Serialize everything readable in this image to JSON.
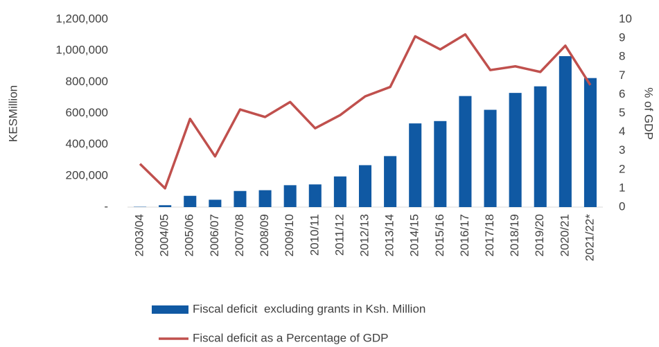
{
  "chart_data": {
    "type": "bar",
    "categories": [
      "2003/04",
      "2004/05",
      "2005/06",
      "2006/07",
      "2007/08",
      "2008/09",
      "2009/10",
      "2010/11",
      "2011/12",
      "2012/13",
      "2013/14",
      "2014/15",
      "2015/16",
      "2016/17",
      "2017/18",
      "2018/19",
      "2019/20",
      "2020/21",
      "2021/22*"
    ],
    "series": [
      {
        "name": "Fiscal deficit  excluding grants in Ksh. Million",
        "type": "bar",
        "color": "#1059a3",
        "values": [
          2000,
          12000,
          72000,
          47000,
          103000,
          108000,
          140000,
          145000,
          196000,
          268000,
          326000,
          535000,
          550000,
          710000,
          622000,
          730000,
          772000,
          965000,
          825000
        ]
      },
      {
        "name": "Fiscal deficit as a Percentage of GDP",
        "type": "line",
        "axis": "y2",
        "color": "#c0504d",
        "values": [
          2.3,
          1.0,
          4.7,
          2.7,
          5.2,
          4.8,
          5.6,
          4.2,
          4.9,
          5.9,
          6.4,
          9.1,
          8.4,
          9.2,
          7.3,
          7.5,
          7.2,
          8.6,
          6.5
        ]
      }
    ],
    "y_label": "KESMillion",
    "y2_label": "% of GDP",
    "ylim": [
      0,
      1200000
    ],
    "yticks": [
      {
        "value": 0,
        "label": "-"
      },
      {
        "value": 200000,
        "label": "200,000"
      },
      {
        "value": 400000,
        "label": "400,000"
      },
      {
        "value": 600000,
        "label": "600,000"
      },
      {
        "value": 800000,
        "label": "800,000"
      },
      {
        "value": 1000000,
        "label": "1,000,000"
      },
      {
        "value": 1200000,
        "label": "1,200,000"
      }
    ],
    "y2lim": [
      0,
      10
    ],
    "y2ticks": [
      0,
      1,
      2,
      3,
      4,
      5,
      6,
      7,
      8,
      9,
      10
    ],
    "grid": false,
    "legend": "bottom"
  }
}
